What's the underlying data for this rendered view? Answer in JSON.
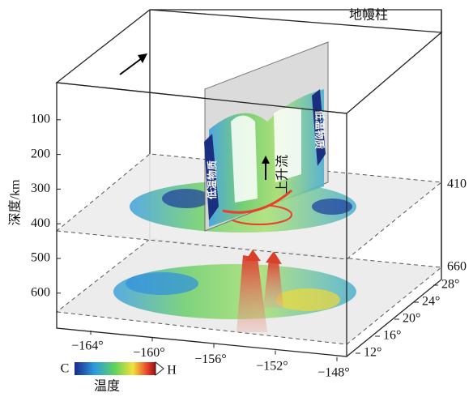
{
  "title": "地幔柱",
  "y_axis": {
    "label": "深度/km",
    "ticks": [
      100,
      200,
      300,
      400,
      500,
      600
    ]
  },
  "layers": [
    410,
    660
  ],
  "lon_ticks": [
    "−164°",
    "−160°",
    "−156°",
    "−152°",
    "−148°"
  ],
  "lat_ticks": [
    "28°",
    "24°",
    "20°",
    "16°",
    "12°"
  ],
  "annotations": {
    "upwelling": "上升流",
    "cold_left": "低温物质",
    "cold_right": "低温物质"
  },
  "legend": {
    "low": "C",
    "high": "H",
    "label": "温度"
  }
}
